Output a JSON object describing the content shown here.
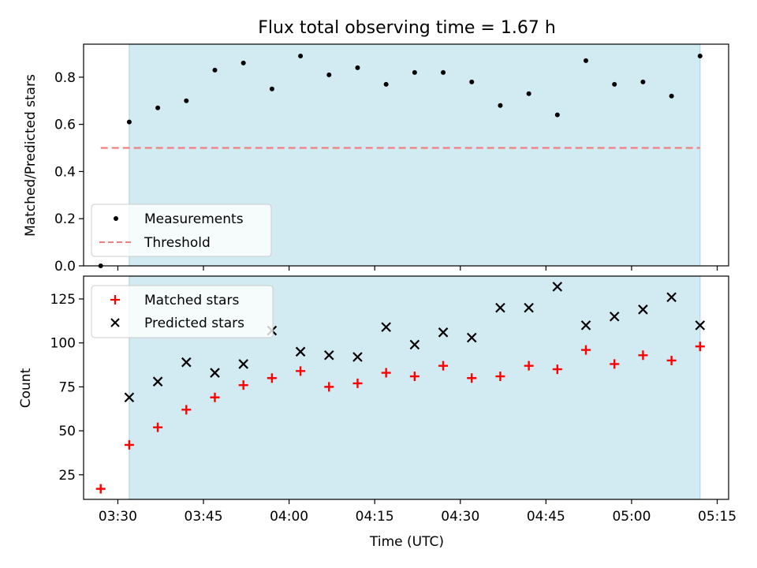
{
  "chart_data": [
    {
      "type": "scatter",
      "title": "Flux total observing time = 1.67 h",
      "xlabel": "",
      "ylabel": "Matched/Predicted stars",
      "xlim": [
        "03:24",
        "05:17"
      ],
      "ylim": [
        0,
        0.94
      ],
      "yticks": [
        "0.0",
        "0.2",
        "0.4",
        "0.6",
        "0.8"
      ],
      "ytick_values": [
        0,
        0.2,
        0.4,
        0.6,
        0.8
      ],
      "shaded_region": {
        "from": "03:32",
        "to": "05:12",
        "color": "#add8e6"
      },
      "legend_position": "lower-left",
      "series": [
        {
          "name": "Measurements",
          "marker": "dot",
          "color": "#000000",
          "x": [
            "03:27",
            "03:32",
            "03:37",
            "03:42",
            "03:47",
            "03:52",
            "03:57",
            "04:02",
            "04:07",
            "04:12",
            "04:17",
            "04:22",
            "04:27",
            "04:32",
            "04:37",
            "04:42",
            "04:47",
            "04:52",
            "04:57",
            "05:02",
            "05:07",
            "05:12"
          ],
          "y": [
            0.0,
            0.61,
            0.67,
            0.7,
            0.83,
            0.86,
            0.75,
            0.89,
            0.81,
            0.84,
            0.77,
            0.82,
            0.82,
            0.78,
            0.68,
            0.73,
            0.64,
            0.87,
            0.77,
            0.78,
            0.72,
            0.89
          ]
        },
        {
          "name": "Threshold",
          "kind": "hline",
          "style": "dashed",
          "color": "#f08080",
          "x": [
            "03:27",
            "05:12"
          ],
          "y": [
            0.5,
            0.5
          ]
        }
      ]
    },
    {
      "type": "scatter",
      "title": "",
      "xlabel": "Time (UTC)",
      "ylabel": "Count",
      "xlim": [
        "03:24",
        "05:17"
      ],
      "ylim": [
        11,
        138
      ],
      "xticks": [
        "03:30",
        "03:45",
        "04:00",
        "04:15",
        "04:30",
        "04:45",
        "05:00",
        "05:15"
      ],
      "yticks": [
        "25",
        "50",
        "75",
        "100",
        "125"
      ],
      "ytick_values": [
        25,
        50,
        75,
        100,
        125
      ],
      "shaded_region": {
        "from": "03:32",
        "to": "05:12",
        "color": "#add8e6"
      },
      "legend_position": "upper-left",
      "series": [
        {
          "name": "Matched stars",
          "marker": "plus",
          "color": "#ff0000",
          "x": [
            "03:27",
            "03:32",
            "03:37",
            "03:42",
            "03:47",
            "03:52",
            "03:57",
            "04:02",
            "04:07",
            "04:12",
            "04:17",
            "04:22",
            "04:27",
            "04:32",
            "04:37",
            "04:42",
            "04:47",
            "04:52",
            "04:57",
            "05:02",
            "05:07",
            "05:12"
          ],
          "y": [
            17,
            42,
            52,
            62,
            69,
            76,
            80,
            84,
            75,
            77,
            83,
            81,
            87,
            80,
            81,
            87,
            85,
            96,
            88,
            93,
            90,
            98
          ]
        },
        {
          "name": "Predicted stars",
          "marker": "x",
          "color": "#000000",
          "x": [
            "03:32",
            "03:37",
            "03:42",
            "03:47",
            "03:52",
            "03:57",
            "04:02",
            "04:07",
            "04:12",
            "04:17",
            "04:22",
            "04:27",
            "04:32",
            "04:37",
            "04:42",
            "04:47",
            "04:52",
            "04:57",
            "05:02",
            "05:07",
            "05:12"
          ],
          "y": [
            69,
            78,
            89,
            83,
            88,
            107,
            95,
            93,
            92,
            109,
            99,
            106,
            103,
            120,
            120,
            132,
            110,
            115,
            119,
            126,
            110
          ]
        }
      ]
    }
  ]
}
